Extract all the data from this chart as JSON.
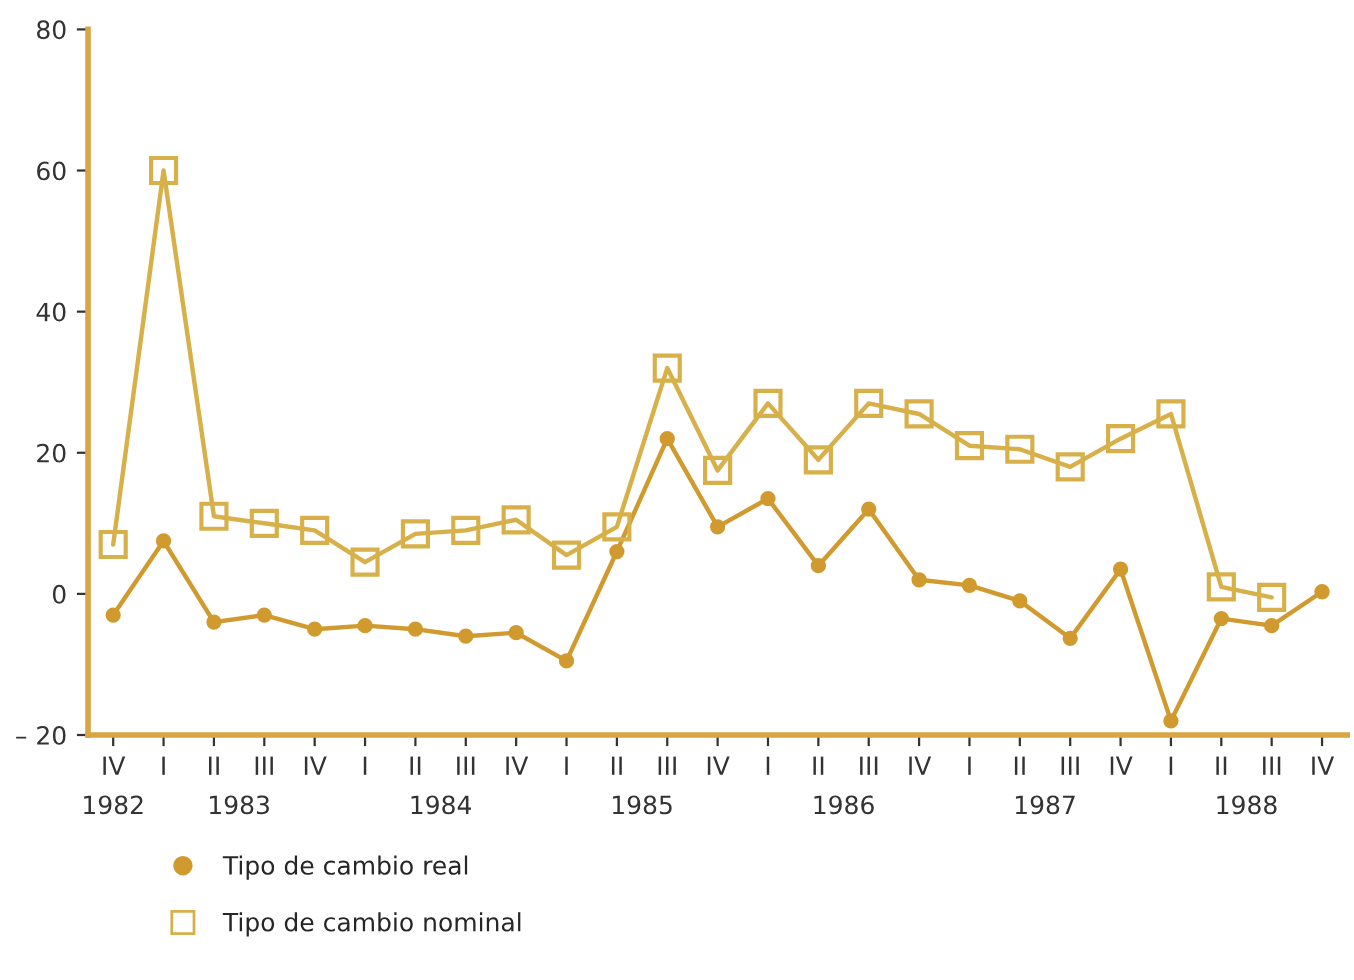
{
  "chart_data": {
    "type": "line",
    "categories": [
      "IV",
      "I",
      "II",
      "III",
      "IV",
      "I",
      "II",
      "III",
      "IV",
      "I",
      "II",
      "III",
      "IV",
      "I",
      "II",
      "III",
      "IV",
      "I",
      "II",
      "III",
      "IV",
      "I",
      "II",
      "III",
      "IV"
    ],
    "series": [
      {
        "name": "Tipo de cambio real",
        "color": "#d19a2e",
        "marker": "circle",
        "values": [
          -3,
          7.5,
          -4,
          -3,
          -5,
          -4.5,
          -5,
          -6,
          -5.5,
          -9.5,
          6,
          22,
          9.5,
          13.5,
          4,
          12,
          2,
          1.2,
          -1,
          -6.3,
          3.5,
          -18,
          -3.5,
          -4.5,
          0.3
        ]
      },
      {
        "name": "Tipo de cambio nominal",
        "color": "#d8b04a",
        "marker": "square",
        "values": [
          7,
          60,
          11,
          10,
          9,
          4.5,
          8.5,
          9,
          10.5,
          5.5,
          9.5,
          32,
          17.5,
          27,
          19,
          27,
          25.5,
          21,
          20.5,
          18,
          22,
          25.5,
          1,
          -0.5,
          null
        ]
      }
    ],
    "ylim": [
      -20,
      80
    ],
    "yticks": [
      {
        "value": -20,
        "label": "– 20"
      },
      0,
      20,
      40,
      60,
      80
    ],
    "annotations": [
      "1982",
      "1983",
      "1984",
      "1985",
      "1986",
      "1987",
      "1988"
    ],
    "legend": "bottom left",
    "grid": false
  }
}
